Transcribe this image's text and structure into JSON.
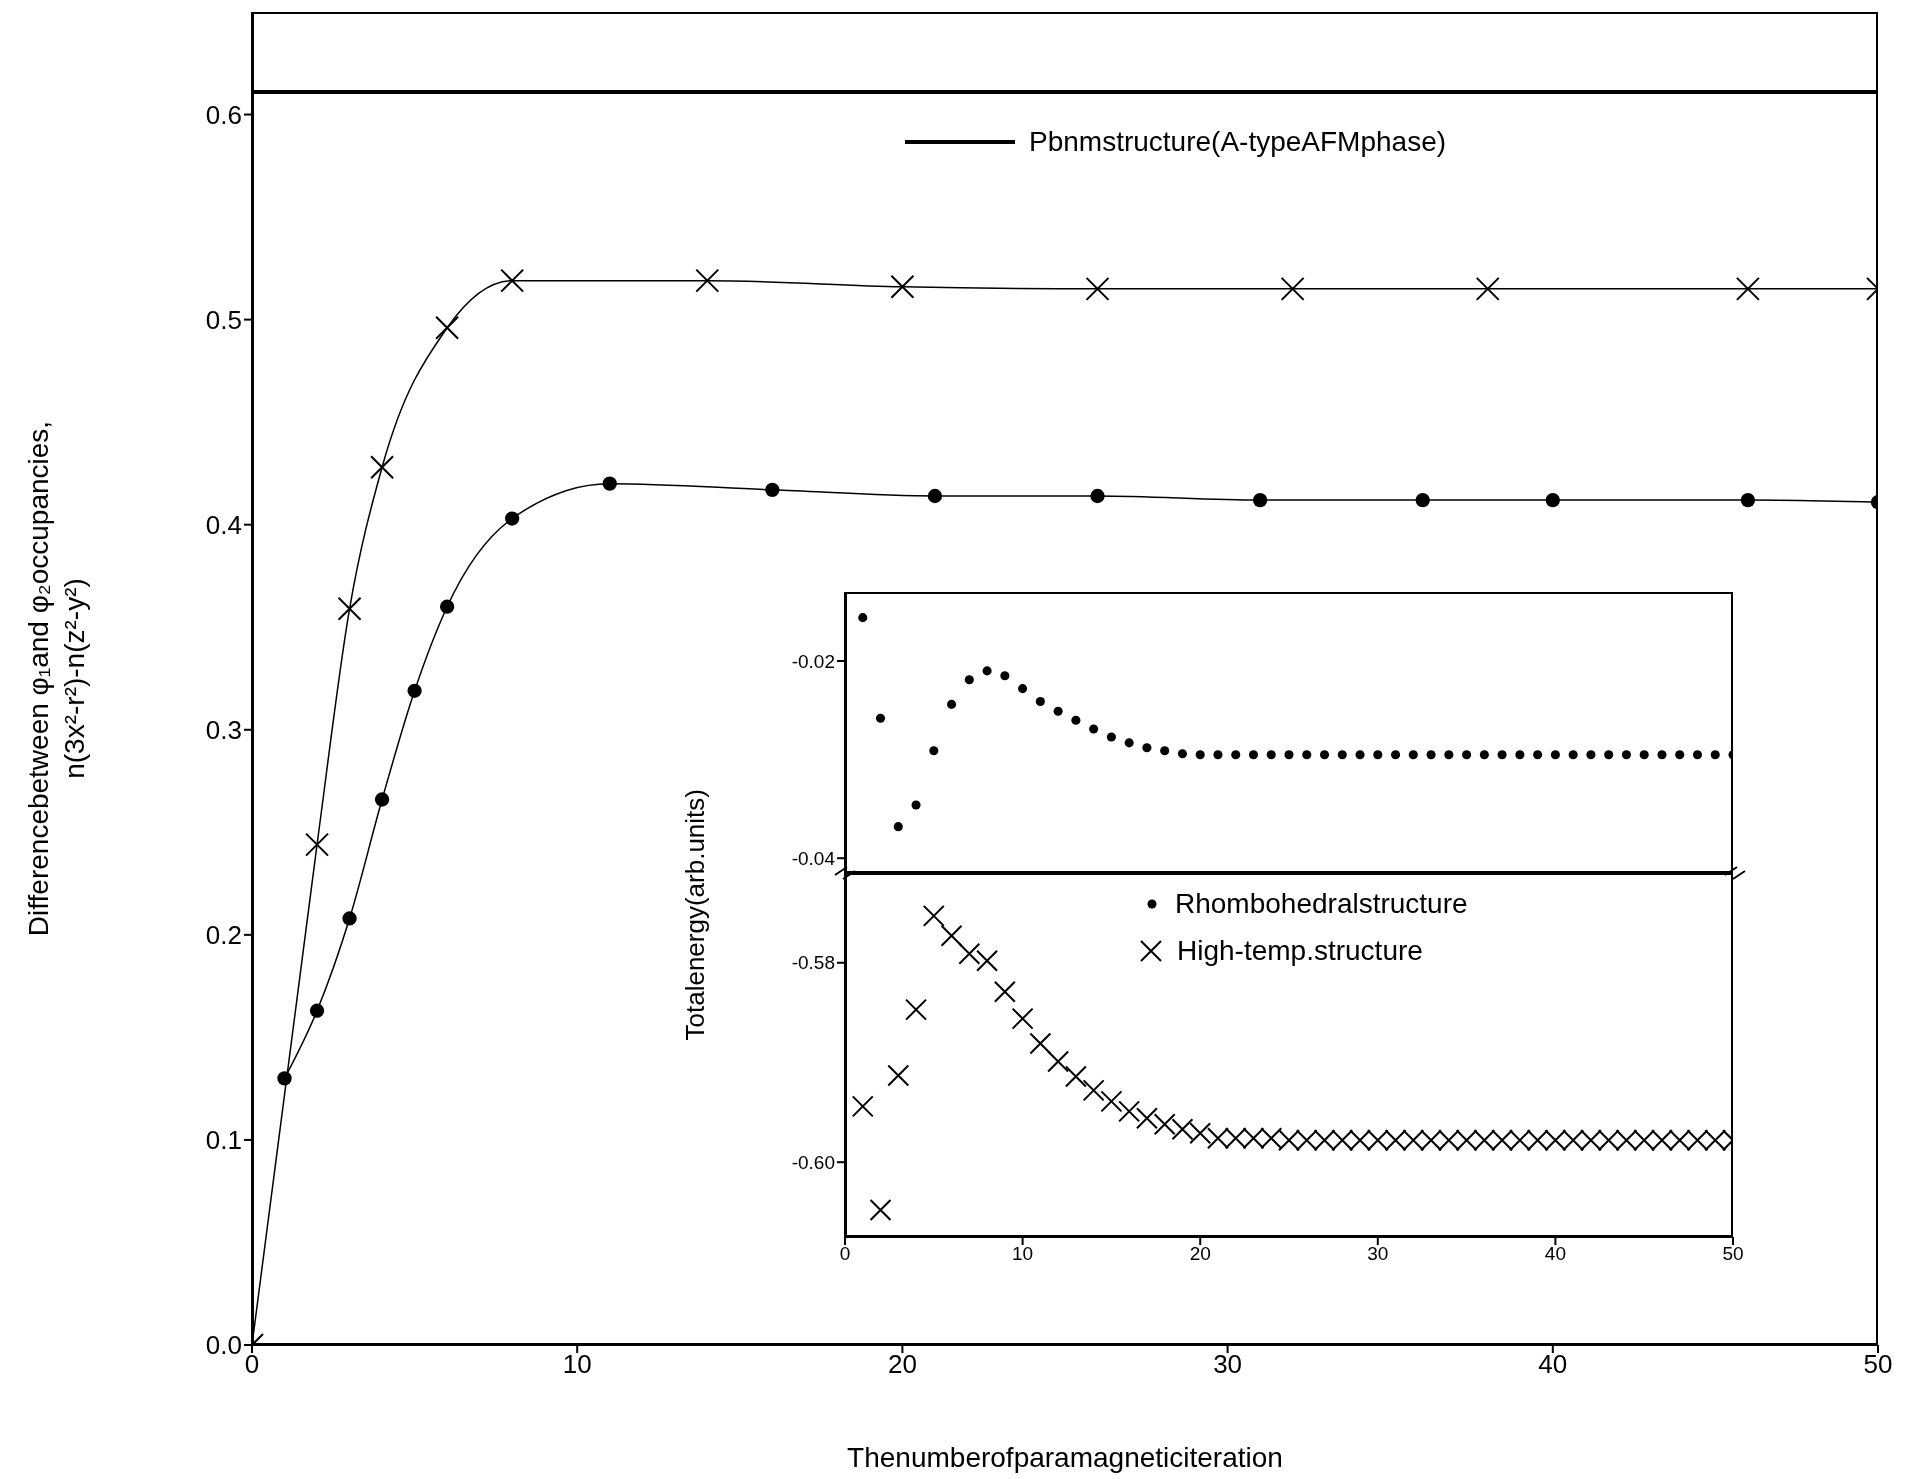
{
  "chart_data": [
    {
      "type": "line",
      "xlabel": "Thenumberofparamagneticiteration",
      "ylabel": "Differencebetween  φ₁and  φ₂occupancies,\nn(3x²-r²)-n(z²-y²)",
      "xlim": [
        0,
        50
      ],
      "xticks": [
        0,
        10,
        20,
        30,
        40,
        50
      ],
      "ylim": [
        0,
        0.65
      ],
      "yticks": [
        {
          "value": 0,
          "label": "0.0"
        },
        0.1,
        0.2,
        0.3,
        0.4,
        0.5,
        0.6
      ],
      "legend": "top right",
      "ref_lines": [
        {
          "axis": "y",
          "value": 0.611,
          "label": "Pbnmstructure(A-typeAFMphase)",
          "color": "#000000"
        }
      ],
      "series": [
        {
          "type": "line",
          "marker": "cross",
          "color": "#000000",
          "x": [
            0,
            2,
            3,
            4,
            6,
            8,
            14,
            20,
            26,
            32,
            38,
            46,
            50
          ],
          "values": [
            0,
            0.244,
            0.359,
            0.428,
            0.496,
            0.519,
            0.519,
            0.516,
            0.515,
            0.515,
            0.515,
            0.515,
            0.515
          ]
        },
        {
          "type": "line",
          "marker": "circle",
          "color": "#000000",
          "x": [
            1,
            2,
            3,
            4,
            5,
            6,
            8,
            11,
            16,
            21,
            26,
            31,
            36,
            40,
            46,
            50
          ],
          "values": [
            0.13,
            0.163,
            0.208,
            0.266,
            0.319,
            0.36,
            0.403,
            0.42,
            0.417,
            0.414,
            0.414,
            0.412,
            0.412,
            0.412,
            0.412,
            0.411
          ]
        }
      ]
    },
    {
      "type": "scatter",
      "xlim": [
        0,
        50
      ],
      "ylim": [
        -0.0415,
        -0.013
      ],
      "yticks": [
        -0.04,
        -0.02
      ],
      "tick_labels": "y",
      "legend": "bottom",
      "series": [
        {
          "name": "Rhombohedralstructure",
          "marker": "circle",
          "color": "#000000",
          "x": [
            1,
            2,
            3,
            4,
            5,
            6,
            7,
            8,
            9,
            10,
            11,
            12,
            13,
            14,
            15,
            16,
            17,
            18,
            19,
            20,
            21,
            22,
            23,
            24,
            25,
            26,
            27,
            28,
            29,
            30,
            31,
            32,
            33,
            34,
            35,
            36,
            37,
            38,
            39,
            40,
            41,
            42,
            43,
            44,
            45,
            46,
            47,
            48,
            49,
            50
          ],
          "values": [
            -0.0156,
            -0.0258,
            -0.0368,
            -0.0346,
            -0.0291,
            -0.0244,
            -0.0219,
            -0.021,
            -0.0215,
            -0.0228,
            -0.0241,
            -0.0251,
            -0.026,
            -0.0269,
            -0.0277,
            -0.0283,
            -0.0288,
            -0.0291,
            -0.0294,
            -0.0295,
            -0.0295,
            -0.0295,
            -0.0295,
            -0.0295,
            -0.0295,
            -0.0295,
            -0.0295,
            -0.0295,
            -0.0295,
            -0.0295,
            -0.0295,
            -0.0295,
            -0.0295,
            -0.0295,
            -0.0295,
            -0.0295,
            -0.0295,
            -0.0295,
            -0.0295,
            -0.0295,
            -0.0295,
            -0.0295,
            -0.0295,
            -0.0295,
            -0.0295,
            -0.0295,
            -0.0295,
            -0.0295,
            -0.0295,
            -0.0295
          ]
        }
      ]
    },
    {
      "type": "scatter",
      "xlim": [
        0,
        50
      ],
      "xticks": [
        0,
        10,
        20,
        30,
        40,
        50
      ],
      "ylim": [
        -0.6075,
        -0.571
      ],
      "yticks": [
        {
          "value": -0.6,
          "label": "-0.60"
        },
        -0.58
      ],
      "ylabel": "Totalenergy(arb.units)",
      "legend": "top right",
      "series": [
        {
          "name": "High-temp.structure",
          "marker": "cross",
          "color": "#000000",
          "x": [
            1,
            2,
            3,
            4,
            5,
            6,
            7,
            8,
            9,
            10,
            11,
            12,
            13,
            14,
            15,
            16,
            17,
            18,
            19,
            20,
            21,
            22,
            23,
            24,
            25,
            26,
            27,
            28,
            29,
            30,
            31,
            32,
            33,
            34,
            35,
            36,
            37,
            38,
            39,
            40,
            41,
            42,
            43,
            44,
            45,
            46,
            47,
            48,
            49,
            50
          ],
          "values": [
            -0.5944,
            -0.6048,
            -0.5913,
            -0.5847,
            -0.5753,
            -0.5773,
            -0.5791,
            -0.5798,
            -0.5829,
            -0.5856,
            -0.5881,
            -0.5899,
            -0.5914,
            -0.5928,
            -0.5939,
            -0.5949,
            -0.5956,
            -0.5962,
            -0.5967,
            -0.5971,
            -0.5976,
            -0.5976,
            -0.5976,
            -0.5976,
            -0.5978,
            -0.5978,
            -0.5978,
            -0.5978,
            -0.5978,
            -0.5978,
            -0.5978,
            -0.5978,
            -0.5978,
            -0.5978,
            -0.5978,
            -0.5978,
            -0.5978,
            -0.5978,
            -0.5978,
            -0.5978,
            -0.5978,
            -0.5978,
            -0.5978,
            -0.5978,
            -0.5978,
            -0.5978,
            -0.5978,
            -0.5978,
            -0.5978,
            -0.5978
          ]
        }
      ]
    }
  ]
}
